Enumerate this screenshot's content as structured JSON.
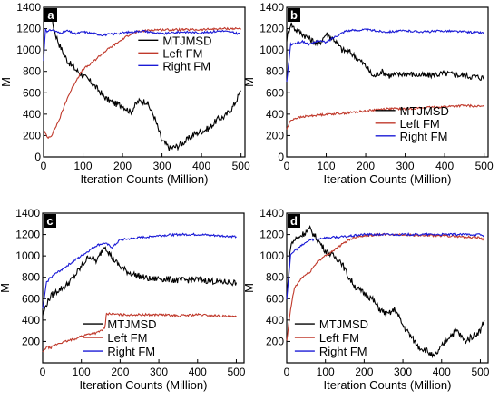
{
  "chart_data": [
    {
      "type": "line",
      "panel_label": "a",
      "xlabel": "Iteration Counts (Million)",
      "ylabel": "M",
      "xlim": [
        0,
        510
      ],
      "ylim": [
        0,
        1400
      ],
      "xticks": [
        0,
        100,
        200,
        300,
        400,
        500
      ],
      "yticks": [
        0,
        200,
        400,
        600,
        800,
        1000,
        1200,
        1400
      ],
      "legend_position": "top-right",
      "series": [
        {
          "name": "MTJMSD",
          "color": "#000000",
          "x": [
            0,
            10,
            20,
            30,
            40,
            60,
            80,
            100,
            120,
            140,
            160,
            180,
            200,
            220,
            240,
            260,
            280,
            300,
            320,
            340,
            360,
            380,
            400,
            420,
            440,
            460,
            480,
            500
          ],
          "values": [
            1300,
            1360,
            1300,
            1150,
            1050,
            900,
            820,
            760,
            700,
            620,
            540,
            500,
            480,
            420,
            520,
            520,
            380,
            150,
            80,
            100,
            150,
            210,
            240,
            270,
            350,
            380,
            470,
            620
          ]
        },
        {
          "name": "Left FM",
          "color": "#c0392b",
          "x": [
            0,
            10,
            20,
            40,
            60,
            80,
            100,
            120,
            140,
            160,
            180,
            200,
            220,
            240,
            260,
            280,
            300,
            350,
            400,
            450,
            500
          ],
          "values": [
            250,
            180,
            200,
            350,
            550,
            700,
            820,
            870,
            940,
            1000,
            1050,
            1100,
            1150,
            1170,
            1180,
            1190,
            1190,
            1190,
            1190,
            1200,
            1200
          ]
        },
        {
          "name": "Right FM",
          "color": "#1a1ad6",
          "x": [
            0,
            5,
            10,
            20,
            40,
            60,
            80,
            100,
            150,
            200,
            250,
            300,
            350,
            400,
            450,
            500
          ],
          "values": [
            900,
            1200,
            1170,
            1190,
            1160,
            1180,
            1150,
            1170,
            1140,
            1160,
            1180,
            1150,
            1170,
            1160,
            1180,
            1150
          ]
        }
      ]
    },
    {
      "type": "line",
      "panel_label": "b",
      "xlabel": "Iteration Counts (Million)",
      "ylabel": "M",
      "xlim": [
        0,
        510
      ],
      "ylim": [
        0,
        1400
      ],
      "xticks": [
        0,
        100,
        200,
        300,
        400,
        500
      ],
      "yticks": [
        0,
        200,
        400,
        600,
        800,
        1000,
        1200,
        1400
      ],
      "legend_position": "bottom-right",
      "series": [
        {
          "name": "MTJMSD",
          "color": "#000000",
          "x": [
            0,
            10,
            20,
            40,
            60,
            80,
            100,
            120,
            140,
            160,
            180,
            200,
            220,
            240,
            260,
            280,
            300,
            350,
            400,
            450,
            500
          ],
          "values": [
            1100,
            1250,
            1200,
            1150,
            1100,
            1050,
            1150,
            1100,
            1000,
            980,
            920,
            850,
            750,
            800,
            760,
            770,
            780,
            760,
            780,
            760,
            740
          ]
        },
        {
          "name": "Left FM",
          "color": "#c0392b",
          "x": [
            0,
            10,
            20,
            50,
            100,
            150,
            200,
            250,
            300,
            350,
            400,
            450,
            500
          ],
          "values": [
            260,
            340,
            360,
            380,
            400,
            410,
            430,
            450,
            450,
            460,
            470,
            480,
            470
          ]
        },
        {
          "name": "Right FM",
          "color": "#1a1ad6",
          "x": [
            0,
            10,
            20,
            40,
            60,
            80,
            100,
            120,
            150,
            200,
            250,
            300,
            350,
            400,
            450,
            500
          ],
          "values": [
            700,
            1050,
            1060,
            1080,
            1050,
            1090,
            1070,
            1120,
            1180,
            1190,
            1170,
            1180,
            1170,
            1180,
            1170,
            1160
          ]
        }
      ]
    },
    {
      "type": "line",
      "panel_label": "c",
      "xlabel": "Iteration Counts (Million)",
      "ylabel": "M",
      "xlim": [
        0,
        520
      ],
      "ylim": [
        0,
        1400
      ],
      "xticks": [
        0,
        100,
        200,
        300,
        400,
        500
      ],
      "yticks": [
        200,
        400,
        600,
        800,
        1000,
        1200,
        1400
      ],
      "legend_position": "bottom-center",
      "series": [
        {
          "name": "MTJMSD",
          "color": "#000000",
          "x": [
            0,
            10,
            20,
            40,
            60,
            80,
            100,
            120,
            140,
            160,
            180,
            200,
            220,
            240,
            260,
            280,
            300,
            350,
            400,
            450,
            500
          ],
          "values": [
            450,
            550,
            620,
            680,
            720,
            800,
            900,
            1000,
            950,
            1100,
            980,
            900,
            850,
            820,
            800,
            780,
            790,
            770,
            780,
            760,
            750
          ]
        },
        {
          "name": "Left FM",
          "color": "#c0392b",
          "x": [
            0,
            10,
            20,
            40,
            60,
            80,
            100,
            120,
            140,
            160,
            165,
            170,
            200,
            250,
            300,
            350,
            400,
            450,
            500
          ],
          "values": [
            100,
            150,
            140,
            180,
            200,
            220,
            250,
            270,
            280,
            320,
            460,
            460,
            450,
            450,
            450,
            440,
            450,
            440,
            430
          ]
        },
        {
          "name": "Right FM",
          "color": "#1a1ad6",
          "x": [
            0,
            10,
            20,
            40,
            60,
            80,
            100,
            120,
            140,
            160,
            180,
            200,
            250,
            300,
            350,
            400,
            450,
            500
          ],
          "values": [
            500,
            750,
            800,
            850,
            900,
            950,
            1000,
            1050,
            1100,
            1120,
            1080,
            1150,
            1170,
            1190,
            1200,
            1200,
            1190,
            1180
          ]
        }
      ]
    },
    {
      "type": "line",
      "panel_label": "d",
      "xlabel": "Iteration Counts (Million)",
      "ylabel": "M",
      "xlim": [
        0,
        520
      ],
      "ylim": [
        0,
        1400
      ],
      "xticks": [
        0,
        100,
        200,
        300,
        400,
        500
      ],
      "yticks": [
        200,
        400,
        600,
        800,
        1000,
        1200,
        1400
      ],
      "legend_position": "bottom-left",
      "series": [
        {
          "name": "MTJMSD",
          "color": "#000000",
          "x": [
            0,
            10,
            20,
            40,
            60,
            80,
            100,
            120,
            140,
            160,
            180,
            200,
            220,
            240,
            260,
            280,
            300,
            320,
            340,
            360,
            380,
            400,
            420,
            440,
            460,
            480,
            500,
            510
          ],
          "values": [
            600,
            1100,
            1150,
            1200,
            1250,
            1150,
            1050,
            1000,
            950,
            800,
            700,
            650,
            600,
            500,
            450,
            500,
            350,
            250,
            150,
            120,
            50,
            150,
            250,
            300,
            200,
            250,
            300,
            400
          ]
        },
        {
          "name": "Left FM",
          "color": "#c0392b",
          "x": [
            0,
            10,
            20,
            40,
            60,
            80,
            100,
            120,
            140,
            160,
            180,
            200,
            250,
            300,
            350,
            400,
            450,
            500,
            510
          ],
          "values": [
            200,
            500,
            700,
            800,
            850,
            950,
            1000,
            1050,
            1100,
            1150,
            1180,
            1190,
            1200,
            1200,
            1190,
            1190,
            1180,
            1170,
            1150
          ]
        },
        {
          "name": "Right FM",
          "color": "#1a1ad6",
          "x": [
            0,
            10,
            20,
            40,
            60,
            80,
            100,
            150,
            200,
            250,
            300,
            350,
            400,
            450,
            500,
            510
          ],
          "values": [
            600,
            1000,
            1050,
            1100,
            1150,
            1160,
            1170,
            1180,
            1200,
            1200,
            1200,
            1200,
            1200,
            1200,
            1200,
            1180
          ]
        }
      ]
    }
  ]
}
